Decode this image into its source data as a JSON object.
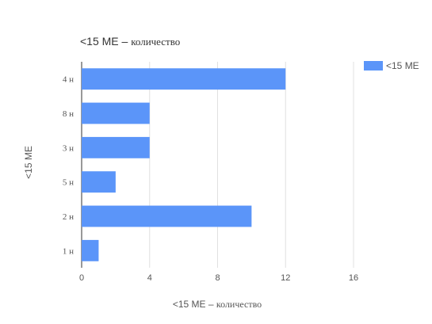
{
  "chart_data": {
    "type": "bar",
    "orientation": "horizontal",
    "title_prefix": "<15 ME",
    "title_suffix": "количество",
    "xlabel_prefix": "<15 ME",
    "xlabel_suffix": "количество",
    "ylabel": "<15 ME",
    "categories": [
      "4 н",
      "8 н",
      "3 н",
      "5 н",
      "2 н",
      "1 н"
    ],
    "series": [
      {
        "name": "<15 ME",
        "values": [
          12,
          4,
          4,
          2,
          10,
          1
        ],
        "color": "#5b95f9"
      }
    ],
    "xlim": [
      0,
      16
    ],
    "xticks": [
      "0",
      "4",
      "8",
      "12",
      "16"
    ],
    "grid": true,
    "legend": "top-right",
    "colors": {
      "grid": "#e0e0e0",
      "axis": "#333333",
      "text": "#555555",
      "title": "#333333"
    }
  }
}
